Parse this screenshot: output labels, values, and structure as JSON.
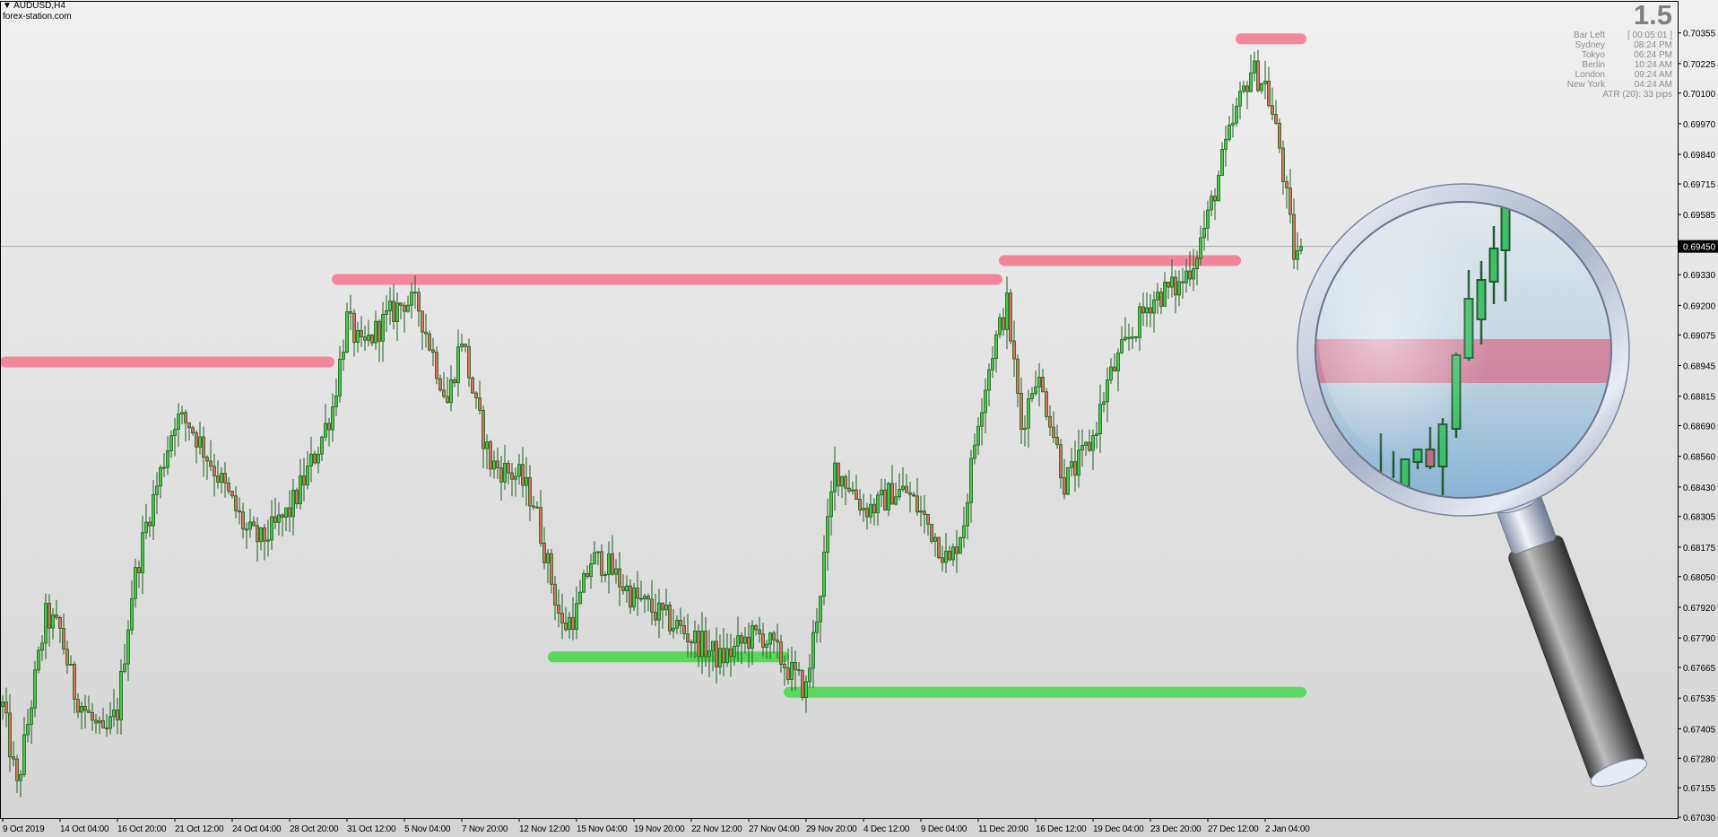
{
  "header": {
    "symbol": "AUDUSD,H4",
    "source": "forex-station.com"
  },
  "info_panel": {
    "spread": "1.5",
    "rows": [
      {
        "label": "Bar Left",
        "value": "[ 00:05:01 ]"
      },
      {
        "label": "Sydney",
        "value": "08:24 PM"
      },
      {
        "label": "Tokyo",
        "value": "06:24 PM"
      },
      {
        "label": "Berlin",
        "value": "10:24 AM"
      },
      {
        "label": "London",
        "value": "09:24 AM"
      },
      {
        "label": "New York",
        "value": "04:24 AM"
      }
    ],
    "atr": "ATR (20): 33 pips"
  },
  "chart_data": {
    "type": "candlestick",
    "symbol": "AUDUSD",
    "timeframe": "H4",
    "current_price": "0.69450",
    "ylim": [
      0.6703,
      0.70355
    ],
    "y_ticks": [
      "0.70355",
      "0.70225",
      "0.70100",
      "0.69970",
      "0.69840",
      "0.69715",
      "0.69585",
      "0.69450",
      "0.69330",
      "0.69200",
      "0.69075",
      "0.68945",
      "0.68815",
      "0.68690",
      "0.68560",
      "0.68430",
      "0.68305",
      "0.68175",
      "0.68050",
      "0.67920",
      "0.67790",
      "0.67665",
      "0.67535",
      "0.67405",
      "0.67280",
      "0.67155",
      "0.67030"
    ],
    "x_ticks": [
      "9 Oct 2019",
      "14 Oct 04:00",
      "16 Oct 20:00",
      "21 Oct 12:00",
      "24 Oct 04:00",
      "28 Oct 20:00",
      "31 Oct 12:00",
      "5 Nov 04:00",
      "7 Nov 20:00",
      "12 Nov 12:00",
      "15 Nov 04:00",
      "19 Nov 20:00",
      "22 Nov 12:00",
      "27 Nov 04:00",
      "29 Nov 20:00",
      "4 Dec 12:00",
      "9 Dec 04:00",
      "11 Dec 20:00",
      "16 Dec 12:00",
      "19 Dec 04:00",
      "23 Dec 20:00",
      "27 Dec 12:00",
      "2 Jan 04:00"
    ],
    "close_path": [
      0.675,
      0.6715,
      0.6752,
      0.6788,
      0.6782,
      0.6756,
      0.6746,
      0.6736,
      0.6748,
      0.6798,
      0.6827,
      0.6849,
      0.6872,
      0.687,
      0.6859,
      0.6848,
      0.6836,
      0.6824,
      0.682,
      0.6826,
      0.6833,
      0.6846,
      0.686,
      0.6877,
      0.6914,
      0.6901,
      0.6909,
      0.6916,
      0.6922,
      0.6919,
      0.6899,
      0.6879,
      0.6907,
      0.6876,
      0.6853,
      0.685,
      0.6847,
      0.6837,
      0.681,
      0.6783,
      0.679,
      0.6812,
      0.6811,
      0.6803,
      0.6796,
      0.6792,
      0.6788,
      0.6784,
      0.6779,
      0.6775,
      0.677,
      0.6774,
      0.6779,
      0.678,
      0.6772,
      0.6764,
      0.6757,
      0.68,
      0.6851,
      0.6844,
      0.6834,
      0.6835,
      0.6841,
      0.6841,
      0.6832,
      0.6822,
      0.681,
      0.6829,
      0.6873,
      0.6901,
      0.692,
      0.6868,
      0.6891,
      0.6873,
      0.6845,
      0.6853,
      0.6864,
      0.6887,
      0.69,
      0.6911,
      0.6922,
      0.6926,
      0.6928,
      0.6939,
      0.6957,
      0.6981,
      0.7002,
      0.702,
      0.7014,
      0.6987,
      0.6942,
      0.6945
    ],
    "levels": [
      {
        "type": "resistance",
        "price": 0.6896
      },
      {
        "type": "resistance",
        "price": 0.6931
      },
      {
        "type": "resistance",
        "price": 0.6939
      },
      {
        "type": "resistance",
        "price": 0.7033
      },
      {
        "type": "support",
        "price": 0.6771
      },
      {
        "type": "support",
        "price": 0.6756
      }
    ],
    "colors": {
      "bull": "#44c944",
      "bear": "#d9705a",
      "outline": "#1d5e1d",
      "resistance": "#f4869c",
      "support": "#5cd65c"
    }
  }
}
